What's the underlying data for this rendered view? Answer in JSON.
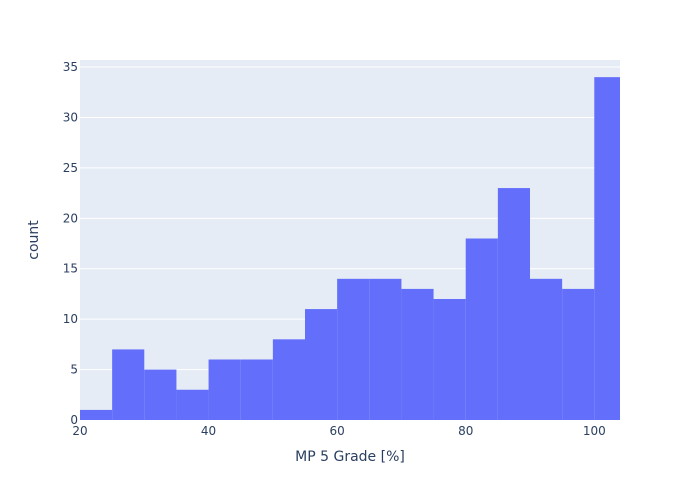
{
  "chart_data": {
    "type": "bar",
    "subtype": "histogram",
    "xlabel": "MP 5 Grade [%]",
    "ylabel": "count",
    "xlim": [
      20,
      104
    ],
    "ylim": [
      0,
      35.7
    ],
    "x_ticks": [
      20,
      40,
      60,
      80,
      100
    ],
    "y_ticks": [
      0,
      5,
      10,
      15,
      20,
      25,
      30,
      35
    ],
    "bins": [
      {
        "x0": 20,
        "x1": 25,
        "count": 1
      },
      {
        "x0": 25,
        "x1": 30,
        "count": 7
      },
      {
        "x0": 30,
        "x1": 35,
        "count": 5
      },
      {
        "x0": 35,
        "x1": 40,
        "count": 3
      },
      {
        "x0": 40,
        "x1": 45,
        "count": 6
      },
      {
        "x0": 45,
        "x1": 50,
        "count": 6
      },
      {
        "x0": 50,
        "x1": 55,
        "count": 8
      },
      {
        "x0": 55,
        "x1": 60,
        "count": 11
      },
      {
        "x0": 60,
        "x1": 65,
        "count": 14
      },
      {
        "x0": 65,
        "x1": 70,
        "count": 14
      },
      {
        "x0": 70,
        "x1": 75,
        "count": 13
      },
      {
        "x0": 75,
        "x1": 80,
        "count": 12
      },
      {
        "x0": 80,
        "x1": 85,
        "count": 18
      },
      {
        "x0": 85,
        "x1": 90,
        "count": 23
      },
      {
        "x0": 90,
        "x1": 95,
        "count": 14
      },
      {
        "x0": 95,
        "x1": 100,
        "count": 13
      },
      {
        "x0": 100,
        "x1": 105,
        "count": 34
      }
    ],
    "grid": true,
    "legend": "none",
    "colors": {
      "bar": "#636efa",
      "plot_bg": "#e5ecf6",
      "grid": "#ffffff",
      "text": "#2a3f5f"
    }
  }
}
